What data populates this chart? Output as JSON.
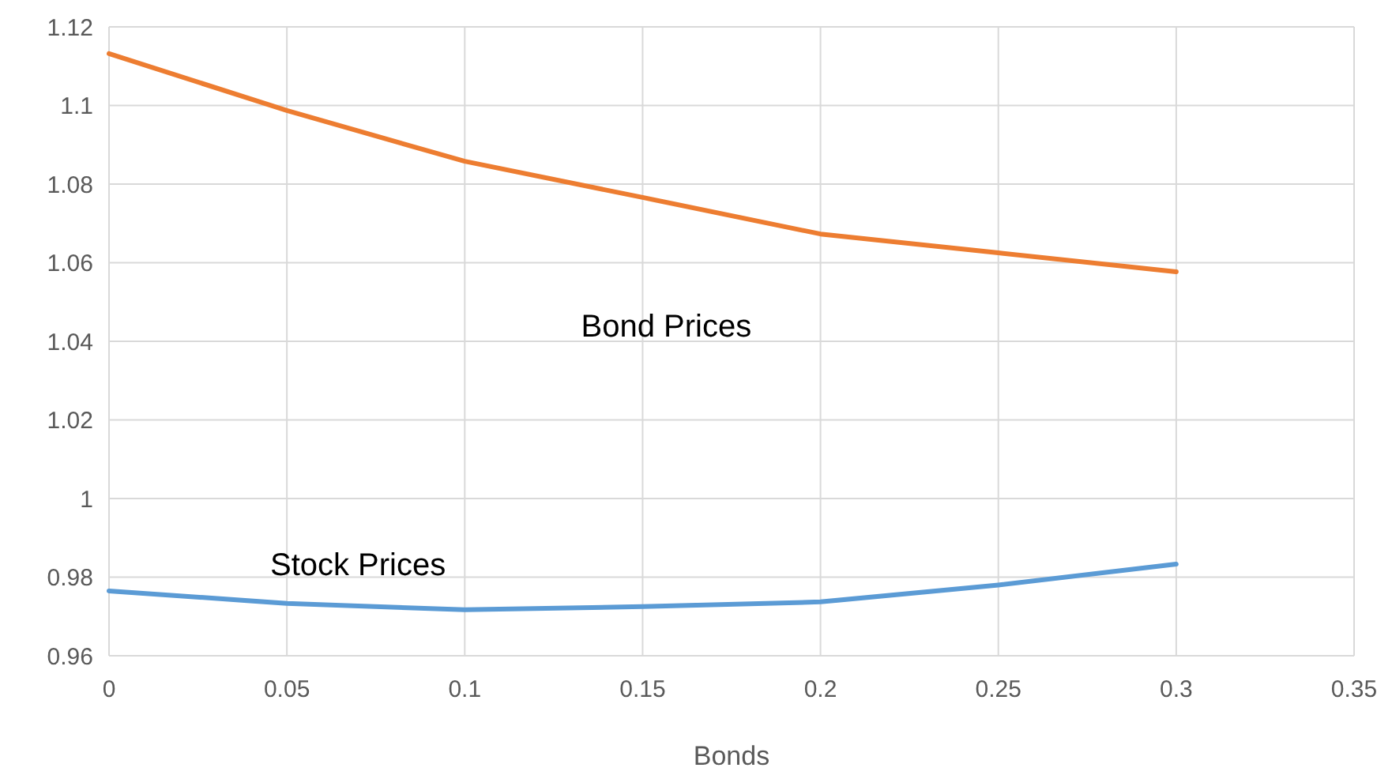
{
  "chart_data": {
    "type": "line",
    "xlabel": "Bonds",
    "x": [
      0,
      0.05,
      0.1,
      0.15,
      0.2,
      0.25,
      0.3
    ],
    "series": [
      {
        "name": "Bond Prices",
        "color": "#ed7d31",
        "values": [
          1.1132,
          1.0987,
          1.0858,
          1.0766,
          1.0673,
          1.0625,
          1.0577
        ]
      },
      {
        "name": "Stock Prices",
        "color": "#5b9bd5",
        "values": [
          0.9765,
          0.9733,
          0.9717,
          0.9725,
          0.9737,
          0.978,
          0.9833
        ]
      }
    ],
    "xlim": [
      0,
      0.35
    ],
    "xticks": [
      0,
      0.05,
      0.1,
      0.15,
      0.2,
      0.25,
      0.3,
      0.35
    ],
    "ylim": [
      0.96,
      1.12
    ],
    "yticks": [
      0.96,
      0.98,
      1,
      1.02,
      1.04,
      1.06,
      1.08,
      1.1,
      1.12
    ],
    "grid": true,
    "marker": "none",
    "line_style": "solid"
  }
}
